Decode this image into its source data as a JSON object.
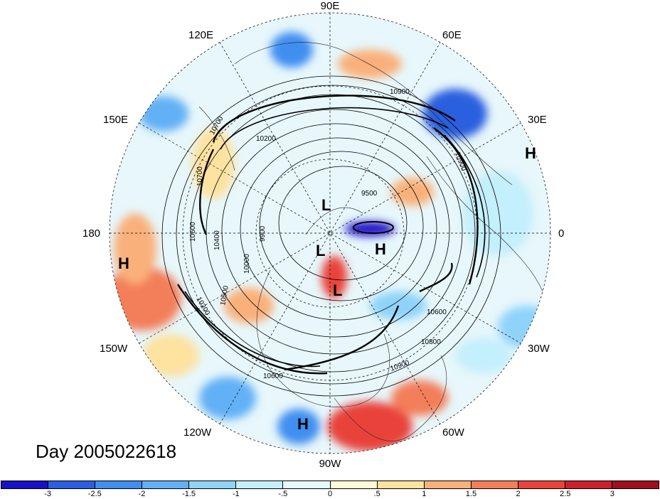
{
  "title": "Day 2005022618",
  "longitude_labels": [
    {
      "id": "90e",
      "text": "90E"
    },
    {
      "id": "60e",
      "text": "60E"
    },
    {
      "id": "30e",
      "text": "30E"
    },
    {
      "id": "0",
      "text": "0"
    },
    {
      "id": "30w",
      "text": "30W"
    },
    {
      "id": "60w",
      "text": "60W"
    },
    {
      "id": "90w",
      "text": "90W"
    },
    {
      "id": "120w",
      "text": "120W"
    },
    {
      "id": "150w",
      "text": "150W"
    },
    {
      "id": "180",
      "text": "180"
    },
    {
      "id": "150e",
      "text": "150E"
    },
    {
      "id": "120e",
      "text": "120E"
    }
  ],
  "pressure_centers": [
    {
      "id": "l1",
      "text": "L"
    },
    {
      "id": "l2",
      "text": "L"
    },
    {
      "id": "l3",
      "text": "L"
    },
    {
      "id": "h1",
      "text": "H"
    },
    {
      "id": "h2",
      "text": "H"
    },
    {
      "id": "h3",
      "text": "H"
    },
    {
      "id": "h4",
      "text": "H"
    }
  ],
  "contour_labels": [
    "10900",
    "10200",
    "9500",
    "10900",
    "10400",
    "9900",
    "10000",
    "10500",
    "10600",
    "10800",
    "10900",
    "10700",
    "10600",
    "10700",
    "10200",
    "10600"
  ],
  "colorbar": {
    "colors": [
      "#1a10c8",
      "#2b5ee0",
      "#3f8ef0",
      "#62b0f5",
      "#8fd3fa",
      "#c4effc",
      "#e6f9fd",
      "#fefad6",
      "#fde2a0",
      "#f9b07a",
      "#f37e5a",
      "#e9423a",
      "#cc1f2c",
      "#a0101c"
    ],
    "tick_labels": [
      "-3",
      "-2.5",
      "-2",
      "-1.5",
      "-1",
      "-.5",
      "0",
      ".5",
      "1",
      "1.5",
      "2",
      "2.5",
      "3"
    ]
  }
}
